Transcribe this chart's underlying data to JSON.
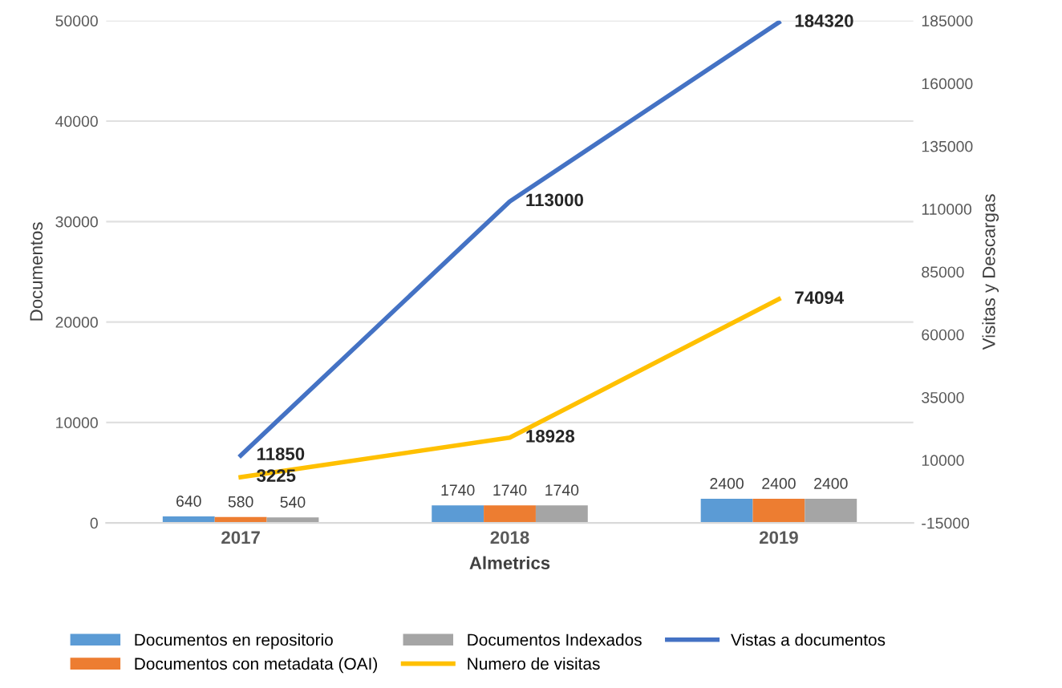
{
  "chart_data": {
    "type": "bar",
    "xlabel": "Almetrics",
    "ylabel": "Documentos",
    "y2label": "Visitas y Descargas",
    "categories": [
      "2017",
      "2018",
      "2019"
    ],
    "series": [
      {
        "name": "Documentos en repositorio",
        "color": "#5b9bd5",
        "values": [
          640,
          1740,
          2400
        ]
      },
      {
        "name": "Documentos con metadata (OAI)",
        "color": "#ed7d31",
        "values": [
          580,
          1740,
          2400
        ]
      },
      {
        "name": "Documentos Indexados",
        "color": "#a5a5a5",
        "values": [
          540,
          1740,
          2400
        ]
      },
      {
        "name": "Numero de visitas",
        "type": "line",
        "axis": "y2",
        "color": "#ffc000",
        "values": [
          3225,
          18928,
          74094
        ]
      },
      {
        "name": "Vistas a documentos",
        "type": "line",
        "axis": "y2",
        "color": "#4472c4",
        "values": [
          11850,
          113000,
          184320
        ]
      }
    ],
    "ylim": [
      0,
      50000
    ],
    "yticks": [
      0,
      10000,
      20000,
      30000,
      40000,
      50000
    ],
    "y2lim": [
      -15000,
      185000
    ],
    "y2ticks": [
      -15000,
      10000,
      35000,
      60000,
      85000,
      110000,
      135000,
      160000,
      185000
    ],
    "grid": "y",
    "legend": "bottom",
    "data_labels": true
  }
}
